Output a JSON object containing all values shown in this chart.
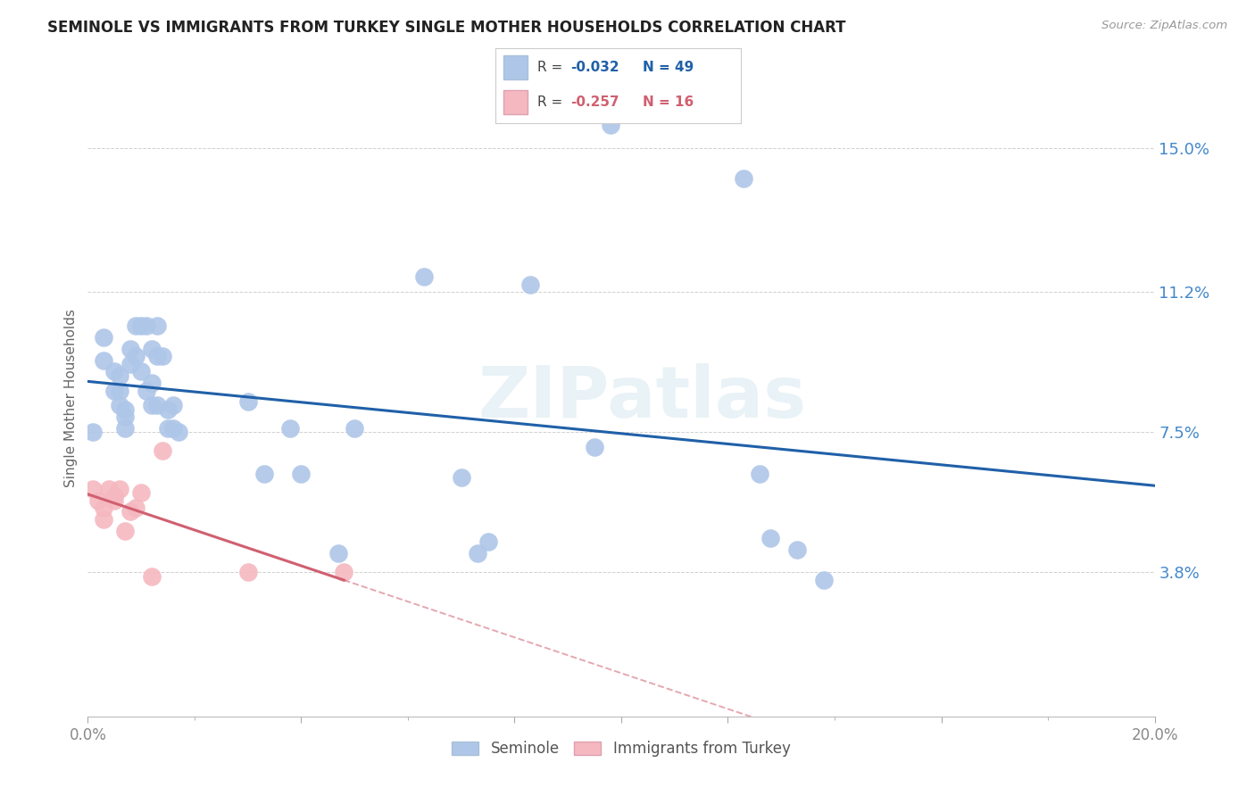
{
  "title": "SEMINOLE VS IMMIGRANTS FROM TURKEY SINGLE MOTHER HOUSEHOLDS CORRELATION CHART",
  "source": "Source: ZipAtlas.com",
  "ylabel": "Single Mother Households",
  "xlim": [
    0.0,
    0.2
  ],
  "ylim": [
    0.0,
    0.168
  ],
  "yticks_right": [
    0.038,
    0.075,
    0.112,
    0.15
  ],
  "ytick_labels_right": [
    "3.8%",
    "7.5%",
    "11.2%",
    "15.0%"
  ],
  "seminole_color": "#aec6e8",
  "turkey_color": "#f5b8c0",
  "blue_line_color": "#2060a8",
  "pink_line_color": "#d06070",
  "watermark": "ZIPatlas",
  "seminole_x": [
    0.001,
    0.003,
    0.003,
    0.005,
    0.005,
    0.006,
    0.006,
    0.006,
    0.007,
    0.007,
    0.007,
    0.008,
    0.008,
    0.009,
    0.009,
    0.01,
    0.01,
    0.011,
    0.011,
    0.012,
    0.012,
    0.012,
    0.013,
    0.013,
    0.013,
    0.014,
    0.015,
    0.015,
    0.016,
    0.016,
    0.017,
    0.03,
    0.033,
    0.038,
    0.04,
    0.047,
    0.05,
    0.063,
    0.07,
    0.073,
    0.075,
    0.083,
    0.095,
    0.098,
    0.123,
    0.126,
    0.128,
    0.133,
    0.138
  ],
  "seminole_y": [
    0.075,
    0.1,
    0.094,
    0.091,
    0.086,
    0.09,
    0.086,
    0.082,
    0.081,
    0.079,
    0.076,
    0.097,
    0.093,
    0.103,
    0.095,
    0.103,
    0.091,
    0.103,
    0.086,
    0.097,
    0.088,
    0.082,
    0.103,
    0.095,
    0.082,
    0.095,
    0.081,
    0.076,
    0.082,
    0.076,
    0.075,
    0.083,
    0.064,
    0.076,
    0.064,
    0.043,
    0.076,
    0.116,
    0.063,
    0.043,
    0.046,
    0.114,
    0.071,
    0.156,
    0.142,
    0.064,
    0.047,
    0.044,
    0.036
  ],
  "turkey_x": [
    0.001,
    0.002,
    0.003,
    0.003,
    0.004,
    0.005,
    0.005,
    0.006,
    0.007,
    0.008,
    0.009,
    0.01,
    0.012,
    0.014,
    0.03,
    0.048
  ],
  "turkey_y": [
    0.06,
    0.057,
    0.055,
    0.052,
    0.06,
    0.057,
    0.058,
    0.06,
    0.049,
    0.054,
    0.055,
    0.059,
    0.037,
    0.07,
    0.038,
    0.038
  ],
  "background_color": "#ffffff",
  "grid_color": "#d0d0d0",
  "title_color": "#222222",
  "axis_label_color": "#666666",
  "right_tick_color": "#4488cc",
  "xtick_color": "#888888"
}
